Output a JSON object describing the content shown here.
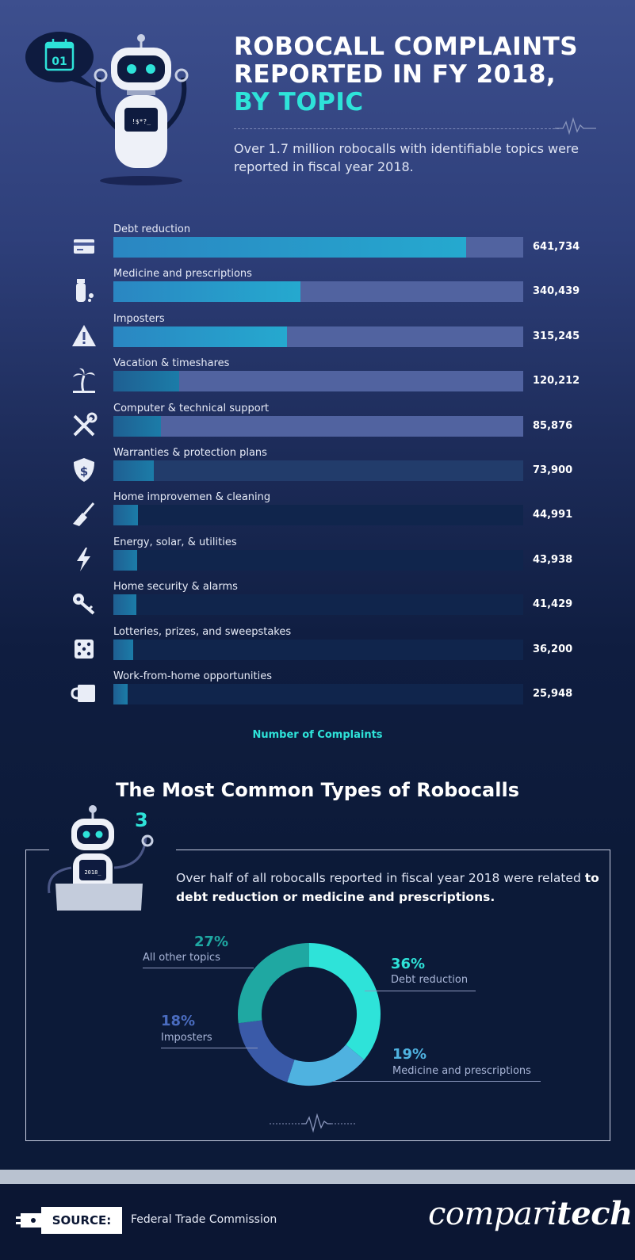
{
  "header": {
    "badge": "01",
    "screen_text": "!$*?_",
    "title_line1": "ROBOCALL COMPLAINTS",
    "title_line2": "REPORTED IN FY 2018,",
    "title_line3": "BY TOPIC",
    "subtitle": "Over 1.7 million robocalls with identifiable topics were reported in fiscal year 2018."
  },
  "colors": {
    "accent": "#2ee3d9",
    "bar_fill_light": "#2aa3d1",
    "bar_fill_dark": "#1c6a97"
  },
  "chart_data": [
    {
      "type": "bar",
      "orientation": "horizontal",
      "xlabel": "Number of Complaints",
      "xlim": [
        0,
        745000
      ],
      "categories": [
        "Debt reduction",
        "Medicine and prescriptions",
        "Imposters",
        "Vacation & timeshares",
        "Computer & technical support",
        "Warranties & protection plans",
        "Home improvemen & cleaning",
        "Energy, solar, & utilities",
        "Home security & alarms",
        "Lotteries, prizes, and sweepstakes",
        "Work-from-home opportunities"
      ],
      "values": [
        641734,
        340439,
        315245,
        120212,
        85876,
        73900,
        44991,
        43938,
        41429,
        36200,
        25948
      ],
      "value_labels": [
        "641,734",
        "340,439",
        "315,245",
        "120,212",
        "85,876",
        "73,900",
        "44,991",
        "43,938",
        "41,429",
        "36,200",
        "25,948"
      ],
      "icons": [
        "credit-card-icon",
        "pill-bottle-icon",
        "warning-icon",
        "palm-tree-icon",
        "tools-icon",
        "shield-dollar-icon",
        "broom-icon",
        "lightning-icon",
        "key-icon",
        "dice-icon",
        "mug-icon"
      ]
    },
    {
      "type": "pie",
      "title": "The Most Common Types of Robocalls",
      "categories": [
        "Debt reduction",
        "Medicine and prescriptions",
        "Imposters",
        "All other topics"
      ],
      "values": [
        36,
        19,
        18,
        27
      ],
      "value_labels": [
        "36%",
        "19%",
        "18%",
        "27%"
      ],
      "colors": [
        "#2ee3d9",
        "#4fb2e0",
        "#3a5aa8",
        "#1fa8a2"
      ]
    }
  ],
  "section2": {
    "robot_screen_text": "2018_",
    "intro_plain": "Over half of all robocalls reported in fiscal year 2018 were related ",
    "intro_bold": "to debt reduction or medicine and prescriptions."
  },
  "footer": {
    "source_label": "SOURCE:",
    "source_text": "Federal Trade Commission",
    "brand_light": "compari",
    "brand_bold": "tech"
  }
}
